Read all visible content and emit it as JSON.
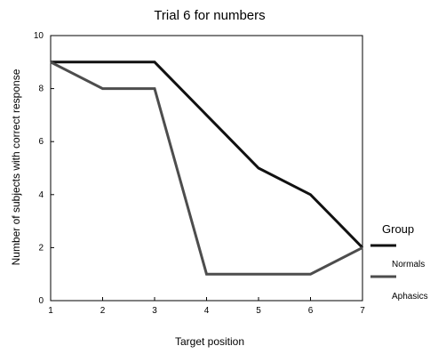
{
  "chart_data": {
    "type": "line",
    "title": "Trial 6 for numbers",
    "xlabel": "Target position",
    "ylabel": "Number of subjects with correct response",
    "x": [
      1,
      2,
      3,
      4,
      5,
      6,
      7
    ],
    "xlim": [
      1,
      7
    ],
    "ylim": [
      0,
      10
    ],
    "yticks": [
      0,
      2,
      4,
      6,
      8,
      10
    ],
    "grid": false,
    "legend": {
      "title": "Group",
      "placement": "right"
    },
    "series": [
      {
        "name": "Normals",
        "values": [
          9,
          9,
          9,
          7,
          5,
          4,
          2
        ],
        "color": "#111111"
      },
      {
        "name": "Aphasics",
        "values": [
          9,
          8,
          8,
          1,
          1,
          1,
          2
        ],
        "color": "#4d4d4d"
      }
    ]
  }
}
